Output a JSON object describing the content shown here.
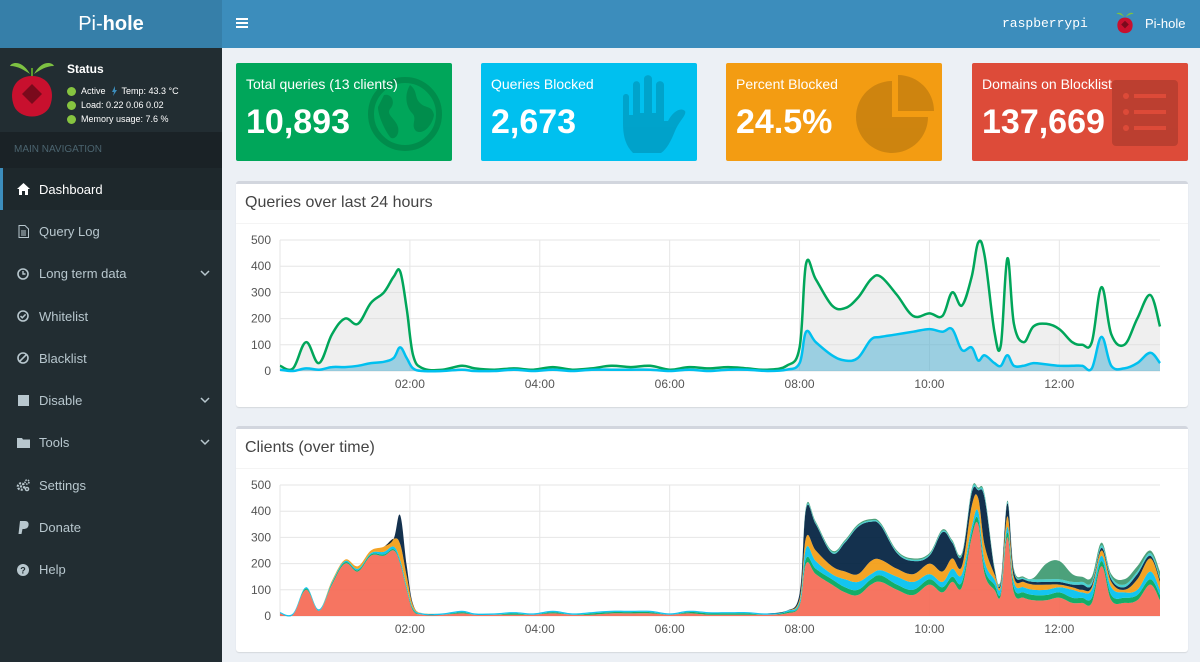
{
  "brand": {
    "pre": "Pi-",
    "bold": "hole"
  },
  "status": {
    "title": "Status",
    "active": "Active",
    "temp": "Temp: 43.3 °C",
    "load": "Load:  0.22  0.06  0.02",
    "memory": "Memory usage:  7.6 %"
  },
  "nav": {
    "header": "MAIN NAVIGATION",
    "items": [
      {
        "label": "Dashboard",
        "icon": "home-icon",
        "active": true
      },
      {
        "label": "Query Log",
        "icon": "file-icon"
      },
      {
        "label": "Long term data",
        "icon": "clock-icon",
        "expandable": true
      },
      {
        "label": "Whitelist",
        "icon": "check-circle-icon"
      },
      {
        "label": "Blacklist",
        "icon": "ban-icon"
      },
      {
        "label": "Disable",
        "icon": "stop-icon",
        "expandable": true
      },
      {
        "label": "Tools",
        "icon": "folder-icon",
        "expandable": true
      },
      {
        "label": "Settings",
        "icon": "gears-icon"
      },
      {
        "label": "Donate",
        "icon": "paypal-icon"
      },
      {
        "label": "Help",
        "icon": "question-circle-icon"
      }
    ]
  },
  "header": {
    "hostname": "raspberrypi",
    "user": "Pi-hole"
  },
  "boxes": [
    {
      "label": "Total queries (13 clients)",
      "value": "10,893",
      "color": "#00a65a",
      "icon": "globe-icon"
    },
    {
      "label": "Queries Blocked",
      "value": "2,673",
      "color": "#00c0ef",
      "icon": "hand-icon"
    },
    {
      "label": "Percent Blocked",
      "value": "24.5%",
      "color": "#f39c12",
      "icon": "pie-chart-icon"
    },
    {
      "label": "Domains on Blocklist",
      "value": "137,669",
      "color": "#dd4b39",
      "icon": "list-icon"
    }
  ],
  "chart_data": [
    {
      "type": "area",
      "title": "Queries over last 24 hours",
      "ylim": [
        0,
        500
      ],
      "yticks": [
        "0",
        "100",
        "200",
        "300",
        "400",
        "500"
      ],
      "xticks": [
        "02:00",
        "04:00",
        "06:00",
        "08:00",
        "10:00",
        "12:00"
      ],
      "xtick_hours": [
        2,
        4,
        6,
        8,
        10,
        12
      ],
      "xlim_hours": [
        0.0,
        13.55
      ],
      "grid": true,
      "series": [
        {
          "color": "#00a65a",
          "fill": "rgba(220,220,220,0.45)",
          "x": [
            0.0,
            0.2,
            0.4,
            0.6,
            0.8,
            1.0,
            1.2,
            1.4,
            1.6,
            1.75,
            1.85,
            1.95,
            2.05,
            2.2,
            2.5,
            2.8,
            3.0,
            3.3,
            3.6,
            3.9,
            4.2,
            4.5,
            4.8,
            5.1,
            5.4,
            5.7,
            6.0,
            6.3,
            6.6,
            6.9,
            7.2,
            7.5,
            7.8,
            8.0,
            8.1,
            8.25,
            8.5,
            8.7,
            8.9,
            9.1,
            9.25,
            9.5,
            9.75,
            10.0,
            10.2,
            10.35,
            10.5,
            10.65,
            10.75,
            10.85,
            11.0,
            11.1,
            11.2,
            11.3,
            11.45,
            11.6,
            11.8,
            12.0,
            12.2,
            12.35,
            12.5,
            12.65,
            12.8,
            13.0,
            13.2,
            13.4,
            13.55
          ],
          "values": [
            20,
            10,
            110,
            30,
            140,
            200,
            180,
            260,
            300,
            360,
            380,
            240,
            60,
            10,
            5,
            20,
            10,
            5,
            10,
            5,
            15,
            5,
            10,
            20,
            15,
            20,
            5,
            15,
            10,
            15,
            10,
            5,
            20,
            90,
            410,
            350,
            250,
            240,
            280,
            350,
            360,
            290,
            210,
            220,
            210,
            300,
            250,
            360,
            490,
            440,
            150,
            100,
            430,
            180,
            110,
            170,
            180,
            160,
            110,
            100,
            110,
            320,
            140,
            100,
            200,
            290,
            170
          ]
        },
        {
          "color": "#00c0ef",
          "fill": "rgba(0,150,200,0.35)",
          "x": [
            0.0,
            0.2,
            0.4,
            0.6,
            0.8,
            1.0,
            1.2,
            1.4,
            1.6,
            1.75,
            1.85,
            1.95,
            2.05,
            2.2,
            2.5,
            2.8,
            3.0,
            3.3,
            3.6,
            3.9,
            4.2,
            4.5,
            4.8,
            5.1,
            5.4,
            5.7,
            6.0,
            6.3,
            6.6,
            6.9,
            7.2,
            7.5,
            7.8,
            8.0,
            8.1,
            8.25,
            8.5,
            8.7,
            8.9,
            9.1,
            9.25,
            9.5,
            9.75,
            10.0,
            10.2,
            10.35,
            10.5,
            10.65,
            10.75,
            10.85,
            11.0,
            11.1,
            11.2,
            11.3,
            11.45,
            11.6,
            11.8,
            12.0,
            12.2,
            12.35,
            12.5,
            12.65,
            12.8,
            13.0,
            13.2,
            13.4,
            13.55
          ],
          "values": [
            5,
            0,
            10,
            5,
            15,
            15,
            20,
            30,
            35,
            50,
            90,
            50,
            10,
            0,
            0,
            5,
            0,
            0,
            5,
            0,
            5,
            0,
            5,
            5,
            5,
            5,
            0,
            5,
            0,
            5,
            5,
            0,
            5,
            30,
            150,
            110,
            60,
            40,
            50,
            120,
            130,
            140,
            150,
            160,
            150,
            160,
            80,
            90,
            40,
            60,
            30,
            20,
            60,
            20,
            20,
            30,
            25,
            20,
            20,
            20,
            10,
            130,
            20,
            10,
            30,
            70,
            30
          ]
        }
      ]
    },
    {
      "type": "area",
      "title": "Clients (over time)",
      "ylim": [
        0,
        500
      ],
      "yticks": [
        "0",
        "100",
        "200",
        "300",
        "400",
        "500"
      ],
      "xticks": [
        "02:00",
        "04:00",
        "06:00",
        "08:00",
        "10:00",
        "12:00"
      ],
      "xtick_hours": [
        2,
        4,
        6,
        8,
        10,
        12
      ],
      "xlim_hours": [
        0.0,
        13.55
      ],
      "grid": true,
      "stacked": true,
      "x": [
        0.0,
        0.2,
        0.4,
        0.6,
        0.8,
        1.0,
        1.2,
        1.4,
        1.6,
        1.75,
        1.85,
        1.95,
        2.05,
        2.2,
        2.5,
        2.8,
        3.0,
        3.3,
        3.6,
        3.9,
        4.2,
        4.5,
        4.8,
        5.1,
        5.4,
        5.7,
        6.0,
        6.3,
        6.6,
        6.9,
        7.2,
        7.5,
        7.8,
        8.0,
        8.1,
        8.25,
        8.5,
        8.7,
        8.9,
        9.1,
        9.25,
        9.5,
        9.75,
        10.0,
        10.2,
        10.35,
        10.5,
        10.65,
        10.75,
        10.85,
        11.0,
        11.1,
        11.2,
        11.3,
        11.45,
        11.6,
        11.8,
        12.0,
        12.2,
        12.35,
        12.5,
        12.65,
        12.8,
        13.0,
        13.2,
        13.4,
        13.55
      ],
      "series": [
        {
          "color": "#f56954",
          "values": [
            10,
            5,
            100,
            20,
            120,
            200,
            170,
            230,
            230,
            250,
            200,
            100,
            20,
            5,
            5,
            10,
            5,
            5,
            5,
            5,
            10,
            5,
            5,
            10,
            10,
            10,
            5,
            10,
            5,
            5,
            5,
            5,
            10,
            40,
            200,
            160,
            120,
            90,
            80,
            120,
            130,
            100,
            80,
            120,
            90,
            130,
            110,
            300,
            350,
            160,
            100,
            80,
            300,
            90,
            70,
            60,
            60,
            70,
            50,
            50,
            50,
            190,
            60,
            50,
            60,
            120,
            60
          ]
        },
        {
          "color": "#00a65a",
          "values": [
            0,
            0,
            5,
            0,
            5,
            5,
            5,
            5,
            5,
            5,
            5,
            5,
            5,
            0,
            0,
            5,
            0,
            0,
            5,
            0,
            5,
            0,
            5,
            5,
            5,
            5,
            0,
            5,
            5,
            5,
            5,
            0,
            5,
            5,
            20,
            20,
            20,
            20,
            20,
            20,
            25,
            20,
            20,
            20,
            20,
            20,
            20,
            20,
            20,
            20,
            20,
            10,
            20,
            20,
            20,
            20,
            20,
            20,
            20,
            20,
            20,
            20,
            20,
            20,
            20,
            20,
            20
          ]
        },
        {
          "color": "#00c0ef",
          "values": [
            5,
            5,
            5,
            5,
            5,
            5,
            5,
            5,
            10,
            10,
            10,
            10,
            5,
            5,
            5,
            5,
            5,
            5,
            5,
            5,
            5,
            5,
            5,
            5,
            5,
            5,
            5,
            5,
            5,
            5,
            5,
            5,
            5,
            10,
            40,
            30,
            20,
            30,
            30,
            20,
            20,
            30,
            30,
            20,
            20,
            30,
            30,
            20,
            30,
            30,
            20,
            20,
            20,
            20,
            20,
            20,
            20,
            20,
            30,
            20,
            30,
            20,
            30,
            20,
            20,
            30,
            20
          ]
        },
        {
          "color": "#f39c12",
          "values": [
            0,
            0,
            0,
            0,
            5,
            5,
            10,
            10,
            20,
            30,
            60,
            40,
            10,
            0,
            0,
            0,
            0,
            0,
            0,
            0,
            0,
            0,
            0,
            0,
            0,
            0,
            0,
            0,
            0,
            0,
            0,
            0,
            0,
            10,
            40,
            40,
            30,
            30,
            30,
            50,
            40,
            30,
            30,
            40,
            40,
            40,
            30,
            80,
            50,
            60,
            20,
            10,
            40,
            20,
            20,
            20,
            20,
            10,
            10,
            10,
            10,
            20,
            20,
            10,
            40,
            50,
            30
          ]
        },
        {
          "color": "#001f3f",
          "values": [
            0,
            0,
            0,
            0,
            0,
            0,
            0,
            0,
            0,
            0,
            110,
            40,
            5,
            0,
            0,
            0,
            0,
            0,
            0,
            0,
            0,
            0,
            0,
            0,
            0,
            0,
            0,
            0,
            0,
            0,
            0,
            0,
            0,
            20,
            110,
            100,
            50,
            110,
            180,
            150,
            130,
            60,
            50,
            30,
            150,
            60,
            40,
            50,
            30,
            180,
            20,
            10,
            50,
            20,
            10,
            10,
            10,
            10,
            10,
            20,
            10,
            10,
            10,
            10,
            20,
            10,
            10
          ]
        },
        {
          "color": "#39cccc",
          "values": [
            0,
            0,
            0,
            0,
            0,
            0,
            0,
            0,
            0,
            0,
            0,
            0,
            0,
            0,
            0,
            0,
            0,
            0,
            0,
            0,
            0,
            0,
            0,
            0,
            0,
            0,
            0,
            0,
            0,
            0,
            0,
            0,
            0,
            0,
            5,
            5,
            5,
            5,
            5,
            5,
            5,
            5,
            5,
            5,
            5,
            5,
            5,
            10,
            5,
            10,
            5,
            5,
            5,
            5,
            5,
            10,
            10,
            10,
            10,
            10,
            10,
            10,
            10,
            10,
            10,
            10,
            10
          ]
        },
        {
          "color": "#605ca8",
          "values": [
            0,
            0,
            0,
            0,
            0,
            0,
            0,
            0,
            0,
            0,
            0,
            0,
            0,
            0,
            0,
            0,
            0,
            0,
            0,
            0,
            0,
            0,
            0,
            0,
            0,
            0,
            0,
            0,
            0,
            0,
            0,
            0,
            0,
            0,
            0,
            0,
            0,
            0,
            0,
            0,
            0,
            0,
            0,
            0,
            0,
            0,
            0,
            0,
            0,
            0,
            0,
            0,
            0,
            0,
            0,
            0,
            0,
            0,
            0,
            0,
            0,
            0,
            0,
            0,
            0,
            0,
            0
          ]
        },
        {
          "color": "#3d9970",
          "values": [
            0,
            0,
            0,
            0,
            0,
            0,
            0,
            0,
            0,
            0,
            0,
            0,
            0,
            0,
            0,
            0,
            0,
            0,
            0,
            0,
            0,
            0,
            0,
            0,
            0,
            0,
            0,
            0,
            0,
            0,
            0,
            0,
            0,
            0,
            5,
            5,
            5,
            5,
            5,
            5,
            5,
            5,
            5,
            5,
            5,
            5,
            5,
            5,
            5,
            5,
            5,
            5,
            5,
            5,
            5,
            5,
            60,
            70,
            30,
            20,
            20,
            10,
            10,
            20,
            20,
            10,
            20
          ]
        }
      ]
    }
  ]
}
